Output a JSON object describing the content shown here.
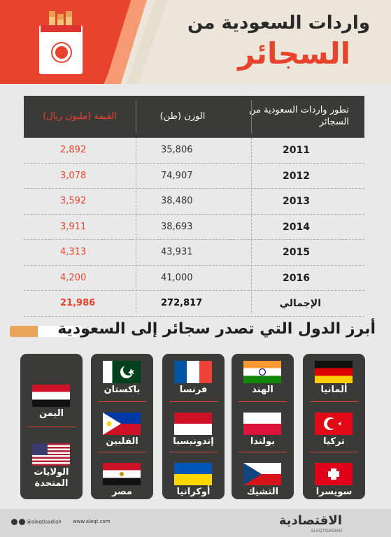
{
  "header": {
    "title_line1": "واردات السعودية من",
    "title_line2": "السجائر"
  },
  "table": {
    "col_years": "تطور واردات السعودية من السجائر",
    "col_weight": "الوزن (طن)",
    "col_value": "القيمة (مليون ريال)",
    "rows": [
      {
        "year": "2011",
        "weight": "35,806",
        "value": "2,892"
      },
      {
        "year": "2012",
        "weight": "74,907",
        "value": "3,078"
      },
      {
        "year": "2013",
        "weight": "38,480",
        "value": "3,592"
      },
      {
        "year": "2014",
        "weight": "38,693",
        "value": "3,911"
      },
      {
        "year": "2015",
        "weight": "43,931",
        "value": "4,313"
      },
      {
        "year": "2016",
        "weight": "41,000",
        "value": "4,200"
      }
    ],
    "total": {
      "label": "الإجمالي",
      "weight": "272,817",
      "value": "21,986"
    }
  },
  "section_title": "أبرز الدول التي تصدر سجائر إلى السعودية",
  "countries": {
    "col1": [
      "ألمانيا",
      "تركيا",
      "سويسرا"
    ],
    "col2": [
      "الهند",
      "بولندا",
      "التشيك"
    ],
    "col3": [
      "فرنسا",
      "إندونيسيا",
      "أوكرانيا"
    ],
    "col4": [
      "باكستان",
      "الفلبين",
      "مصر"
    ],
    "col5": [
      "اليمن",
      "الولايات المتحدة"
    ]
  },
  "footer": {
    "social": "@aleqtisadiah",
    "website": "www.aleqt.com",
    "logo": "الاقتصادية",
    "logo_sub": "ELEQTISADIAH"
  },
  "colors": {
    "accent": "#e8432d",
    "dark": "#3a3b38"
  }
}
